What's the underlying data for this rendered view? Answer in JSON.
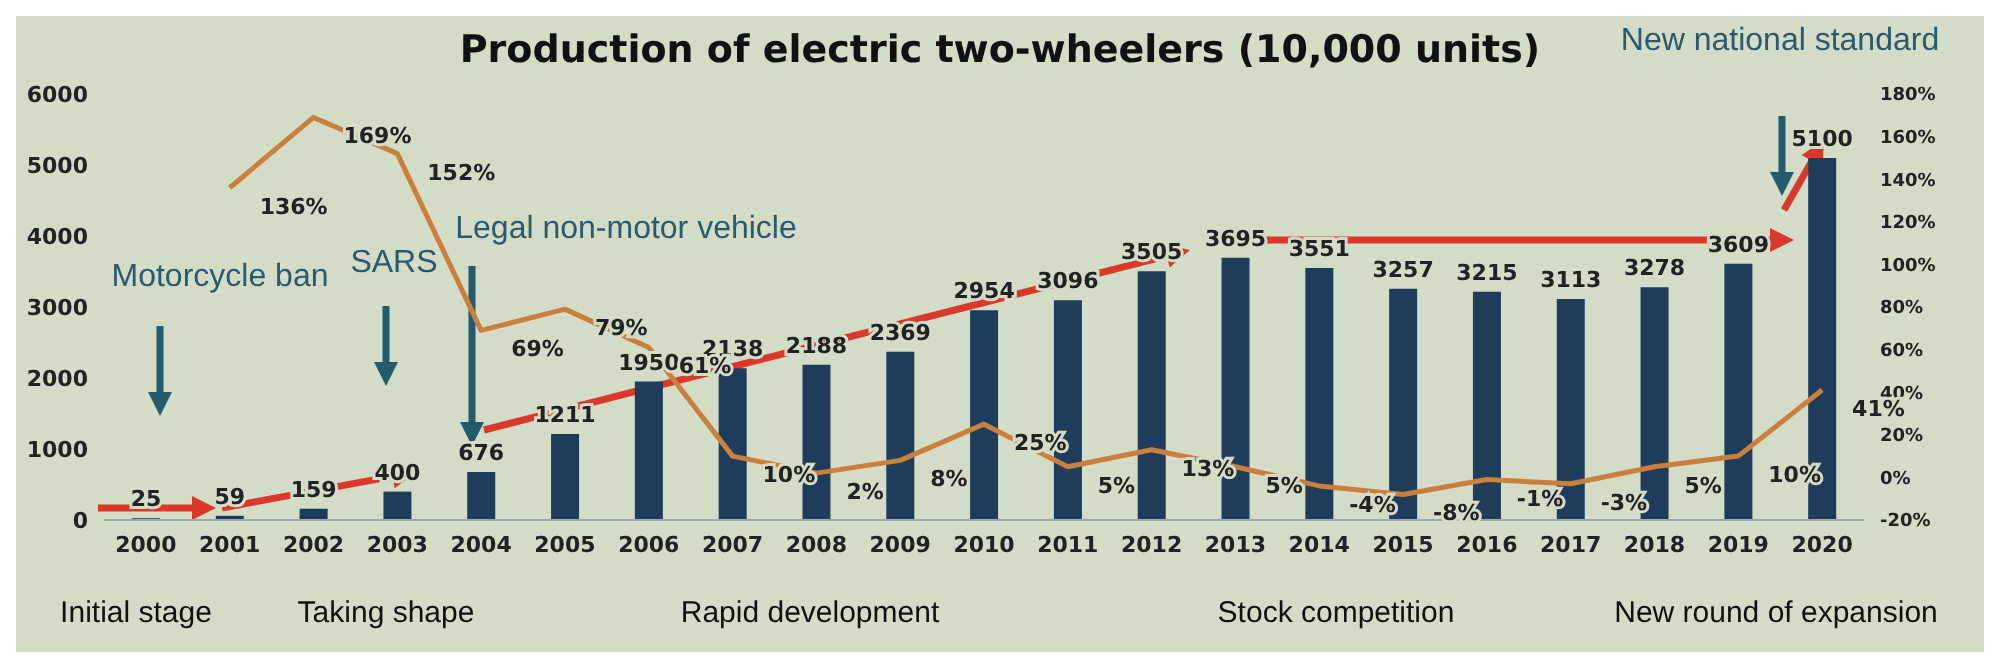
{
  "chart_data": {
    "type": "bar",
    "title": "Production of electric two-wheelers (10,000 units)",
    "categories": [
      "2000",
      "2001",
      "2002",
      "2003",
      "2004",
      "2005",
      "2006",
      "2007",
      "2008",
      "2009",
      "2010",
      "2011",
      "2012",
      "2013",
      "2014",
      "2015",
      "2016",
      "2017",
      "2018",
      "2019",
      "2020"
    ],
    "series": [
      {
        "color": "#1f3d5a",
        "values": [
          25,
          59,
          159,
          400,
          676,
          1211,
          1950,
          2138,
          2188,
          2369,
          2954,
          3096,
          3505,
          3695,
          3551,
          3257,
          3215,
          3113,
          3278,
          3609,
          5100
        ],
        "value_labels": [
          "25",
          "59",
          "159",
          "400",
          "676",
          "1211",
          "1950",
          "2138",
          "2188",
          "2369",
          "2954",
          "3096",
          "3505",
          "3695",
          "3551",
          "3257",
          "3215",
          "3113",
          "3278",
          "3609",
          "5100"
        ]
      },
      {
        "type": "line",
        "axis": "y2",
        "color": "#c8803c",
        "values": [
          null,
          136,
          169,
          152,
          69,
          79,
          61,
          10,
          2,
          8,
          25,
          5,
          13,
          5,
          -4,
          -8,
          -1,
          -3,
          5,
          10,
          41
        ],
        "value_labels": [
          null,
          "136%",
          "169%",
          "152%",
          "69%",
          "79%",
          "61%",
          "10%",
          "2%",
          "8%",
          "25%",
          "5%",
          "13%",
          "5%",
          "-4%",
          "-8%",
          "-1%",
          "-3%",
          "5%",
          "10%",
          "41%"
        ]
      }
    ],
    "ylim": [
      0,
      6000
    ],
    "yticks": [
      0,
      1000,
      2000,
      3000,
      4000,
      5000,
      6000
    ],
    "y2lim": [
      -20,
      180
    ],
    "y2ticks": [
      {
        "value": -20,
        "label": "-20%"
      },
      {
        "value": 0,
        "label": "0%"
      },
      {
        "value": 20,
        "label": "20%"
      },
      {
        "value": 40,
        "label": "40%"
      },
      {
        "value": 60,
        "label": "60%"
      },
      {
        "value": 80,
        "label": "80%"
      },
      {
        "value": 100,
        "label": "100%"
      },
      {
        "value": 120,
        "label": "120%"
      },
      {
        "value": 140,
        "label": "140%"
      },
      {
        "value": 160,
        "label": "160%"
      },
      {
        "value": 180,
        "label": "180%"
      }
    ],
    "marker": "none",
    "annotations": [
      "Motorcycle ban",
      "SARS",
      "Legal non-motor vehicle",
      "New national standard",
      "Initial stage",
      "Taking shape",
      "Rapid development",
      "Stock competition",
      "New round of expansion"
    ]
  }
}
